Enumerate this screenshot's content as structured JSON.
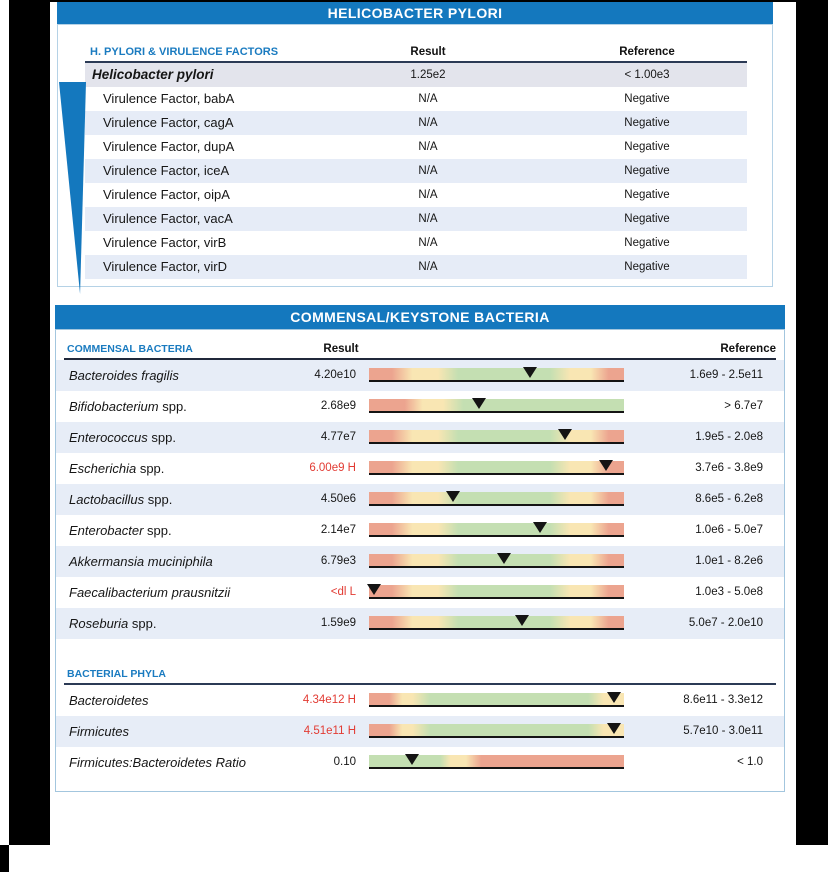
{
  "pylori": {
    "banner": "HELICOBACTER PYLORI",
    "col_name": "H. PYLORI & VIRULENCE FACTORS",
    "col_result": "Result",
    "col_reference": "Reference",
    "rows": [
      {
        "name": "Helicobacter pylori",
        "result": "1.25e2",
        "reference": "< 1.00e3",
        "style": "primary"
      },
      {
        "name": "Virulence Factor, babA",
        "result": "N/A",
        "reference": "Negative"
      },
      {
        "name": "Virulence Factor, cagA",
        "result": "N/A",
        "reference": "Negative"
      },
      {
        "name": "Virulence Factor, dupA",
        "result": "N/A",
        "reference": "Negative"
      },
      {
        "name": "Virulence Factor, iceA",
        "result": "N/A",
        "reference": "Negative"
      },
      {
        "name": "Virulence Factor, oipA",
        "result": "N/A",
        "reference": "Negative"
      },
      {
        "name": "Virulence Factor, vacA",
        "result": "N/A",
        "reference": "Negative"
      },
      {
        "name": "Virulence Factor, virB",
        "result": "N/A",
        "reference": "Negative"
      },
      {
        "name": "Virulence Factor, virD",
        "result": "N/A",
        "reference": "Negative"
      }
    ]
  },
  "commensal": {
    "banner": "COMMENSAL/KEYSTONE BACTERIA",
    "col_name": "COMMENSAL BACTERIA",
    "col_result": "Result",
    "col_reference": "Reference",
    "phyla_header": "BACTERIAL PHYLA",
    "rows": [
      {
        "name_italic": "Bacteroides fragilis",
        "name_rest": "",
        "result": "4.20e10",
        "flag": false,
        "bar": "range",
        "marker_pct": 63,
        "reference": "1.6e9 - 2.5e11"
      },
      {
        "name_italic": "Bifidobacterium",
        "name_rest": " spp.",
        "result": "2.68e9",
        "flag": false,
        "bar": "gt",
        "marker_pct": 43,
        "reference": "> 6.7e7"
      },
      {
        "name_italic": "Enterococcus",
        "name_rest": " spp.",
        "result": "4.77e7",
        "flag": false,
        "bar": "range",
        "marker_pct": 77,
        "reference": "1.9e5 - 2.0e8"
      },
      {
        "name_italic": "Escherichia",
        "name_rest": " spp.",
        "result": "6.00e9 H",
        "flag": true,
        "bar": "range",
        "marker_pct": 93,
        "reference": "3.7e6 - 3.8e9"
      },
      {
        "name_italic": "Lactobacillus",
        "name_rest": " spp.",
        "result": "4.50e6",
        "flag": false,
        "bar": "range",
        "marker_pct": 33,
        "reference": "8.6e5 - 6.2e8"
      },
      {
        "name_italic": "Enterobacter",
        "name_rest": " spp.",
        "result": "2.14e7",
        "flag": false,
        "bar": "range",
        "marker_pct": 67,
        "reference": "1.0e6 - 5.0e7"
      },
      {
        "name_italic": "Akkermansia muciniphila",
        "name_rest": "",
        "result": "6.79e3",
        "flag": false,
        "bar": "range",
        "marker_pct": 53,
        "reference": "1.0e1 - 8.2e6"
      },
      {
        "name_italic": "Faecalibacterium prausnitzii",
        "name_rest": "",
        "result": "<dl L",
        "flag": true,
        "bar": "range",
        "marker_pct": 2,
        "reference": "1.0e3 - 5.0e8"
      },
      {
        "name_italic": "Roseburia",
        "name_rest": " spp.",
        "result": "1.59e9",
        "flag": false,
        "bar": "range",
        "marker_pct": 60,
        "reference": "5.0e7 - 2.0e10"
      }
    ],
    "phyla_rows": [
      {
        "name_italic": "Bacteroidetes",
        "name_rest": "",
        "result": "4.34e12 H",
        "flag": true,
        "bar": "hi",
        "marker_pct": 96,
        "reference": "8.6e11 - 3.3e12"
      },
      {
        "name_italic": "Firmicutes",
        "name_rest": "",
        "result": "4.51e11 H",
        "flag": true,
        "bar": "hi",
        "marker_pct": 96,
        "reference": "5.7e10 - 3.0e11"
      },
      {
        "name_italic": "Firmicutes:Bacteroidetes Ratio",
        "name_rest": "",
        "result": "0.10",
        "flag": false,
        "bar": "lt",
        "marker_pct": 17,
        "reference": "< 1.0"
      }
    ]
  },
  "colors": {
    "banner_blue": "#1478be",
    "header_text_blue": "#1a7bc0",
    "row_alt_blue": "#e7edf7",
    "row_primary_gray": "#e3e4ec",
    "flag_red": "#e23b33",
    "bar_red": "#eca48f",
    "bar_yellow": "#f9e6b3",
    "bar_green": "#c4dfb2",
    "marker_black": "#141414"
  }
}
